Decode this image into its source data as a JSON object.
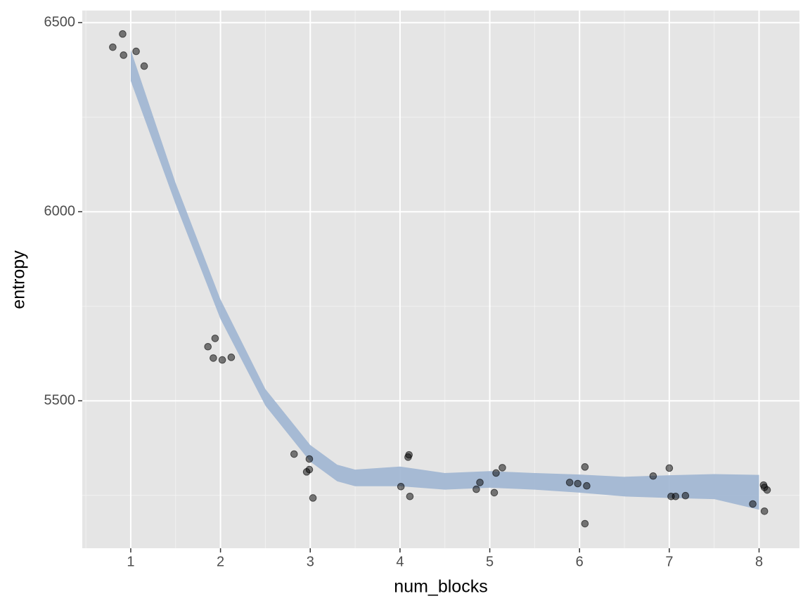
{
  "chart_data": {
    "type": "scatter",
    "x_label": "num_blocks",
    "y_label": "entropy",
    "xlim": [
      0.46,
      8.45
    ],
    "ylim": [
      5110,
      6532
    ],
    "xticks": [
      1,
      2,
      3,
      4,
      5,
      6,
      7,
      8
    ],
    "yticks": [
      5500,
      6000,
      6500
    ],
    "x_minor_ticks": [
      0.5,
      1.5,
      2.5,
      3.5,
      4.5,
      5.5,
      6.5,
      7.5
    ],
    "y_minor_ticks": [
      5250,
      5750,
      6250
    ],
    "grid": true,
    "points": {
      "color": "#000000",
      "x": [
        0.8,
        0.91,
        0.92,
        1.06,
        1.15,
        1.86,
        1.94,
        1.92,
        2.02,
        2.12,
        2.82,
        2.99,
        2.99,
        2.96,
        3.03,
        4.01,
        4.1,
        4.09,
        4.11,
        4.85,
        4.89,
        5.07,
        5.14,
        5.05,
        5.89,
        5.98,
        6.06,
        6.08,
        6.06,
        6.82,
        7.0,
        7.02,
        7.07,
        7.18,
        7.93,
        8.05,
        8.06,
        8.09,
        8.06
      ],
      "y": [
        6435,
        6470,
        6414,
        6424,
        6385,
        5643,
        5665,
        5613,
        5608,
        5615,
        5359,
        5346,
        5318,
        5312,
        5243,
        5273,
        5357,
        5351,
        5247,
        5266,
        5284,
        5309,
        5323,
        5257,
        5284,
        5281,
        5325,
        5275,
        5175,
        5301,
        5322,
        5247,
        5247,
        5249,
        5227,
        5277,
        5271,
        5264,
        5208
      ]
    },
    "band": {
      "color": "#9fb5d1",
      "x": [
        1,
        1.5,
        2,
        2.5,
        3,
        3.3,
        3.5,
        4,
        4.5,
        5,
        5.5,
        6,
        6.5,
        7,
        7.5,
        8
      ],
      "upper": [
        6428,
        6076,
        5768,
        5531,
        5383,
        5331,
        5318,
        5326,
        5309,
        5314,
        5309,
        5305,
        5299,
        5303,
        5306,
        5304
      ],
      "lower": [
        6346,
        6020,
        5716,
        5487,
        5339,
        5287,
        5274,
        5274,
        5265,
        5270,
        5265,
        5257,
        5247,
        5243,
        5240,
        5212
      ]
    }
  }
}
